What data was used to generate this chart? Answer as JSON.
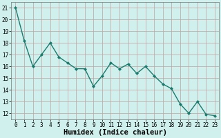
{
  "x": [
    0,
    1,
    2,
    3,
    4,
    5,
    6,
    7,
    8,
    9,
    10,
    11,
    12,
    13,
    14,
    15,
    16,
    17,
    18,
    19,
    20,
    21,
    22,
    23
  ],
  "y": [
    21,
    18.2,
    16.0,
    17.0,
    18.0,
    16.8,
    16.3,
    15.8,
    15.8,
    14.3,
    15.2,
    16.3,
    15.8,
    16.2,
    15.4,
    16.0,
    15.2,
    14.5,
    14.1,
    12.8,
    12.0,
    13.0,
    11.9,
    11.8
  ],
  "line_color": "#1a7a6e",
  "marker": "D",
  "marker_size": 2.0,
  "linewidth": 1.0,
  "xlabel": "Humidex (Indice chaleur)",
  "xlabel_fontsize": 7.5,
  "xlim": [
    -0.5,
    23.5
  ],
  "ylim": [
    11.5,
    21.5
  ],
  "yticks": [
    12,
    13,
    14,
    15,
    16,
    17,
    18,
    19,
    20,
    21
  ],
  "xticks": [
    0,
    1,
    2,
    3,
    4,
    5,
    6,
    7,
    8,
    9,
    10,
    11,
    12,
    13,
    14,
    15,
    16,
    17,
    18,
    19,
    20,
    21,
    22,
    23
  ],
  "background_color": "#cff0ec",
  "grid_color": "#c0a0a0",
  "tick_fontsize": 5.5,
  "fig_width": 3.2,
  "fig_height": 2.0,
  "dpi": 100
}
